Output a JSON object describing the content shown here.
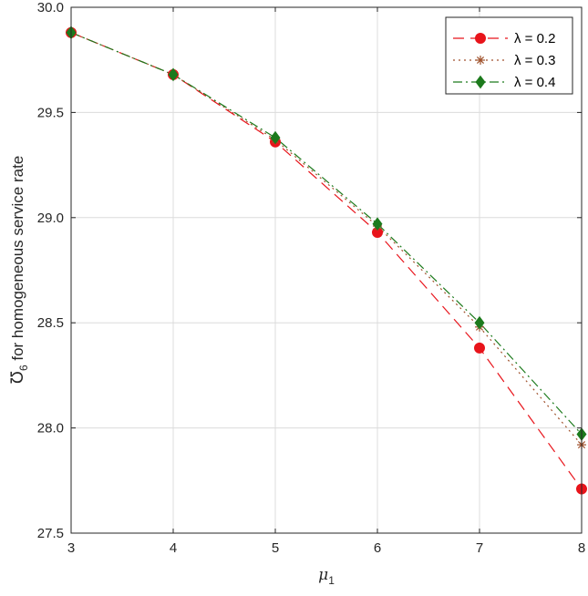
{
  "chart_data": {
    "type": "line",
    "x": [
      3,
      4,
      5,
      6,
      7,
      8
    ],
    "xlim": [
      3,
      8
    ],
    "ylim": [
      27.5,
      30.0
    ],
    "xticks": [
      "3",
      "4",
      "5",
      "6",
      "7",
      "8"
    ],
    "yticks": [
      "27.5",
      "28.0",
      "28.5",
      "29.0",
      "29.5",
      "30.0"
    ],
    "xlabel": {
      "symbol": "μ",
      "subscript": "1"
    },
    "ylabel": {
      "symbol": "Ʊ",
      "subscript": "6",
      "text": " for homogeneous service rate"
    },
    "grid": true,
    "legend_position": "top-right",
    "series": [
      {
        "name": "λ = 0.2",
        "values": [
          29.88,
          29.68,
          29.36,
          28.93,
          28.38,
          27.71
        ],
        "color": "#e8141b",
        "marker": "circle",
        "dash": "dashed"
      },
      {
        "name": "λ = 0.3",
        "values": [
          29.88,
          29.68,
          29.37,
          28.96,
          28.48,
          27.92
        ],
        "color": "#a0522d",
        "marker": "asterisk",
        "dash": "dotted"
      },
      {
        "name": "λ = 0.4",
        "values": [
          29.88,
          29.68,
          29.38,
          28.97,
          28.5,
          27.97
        ],
        "color": "#1c7a1c",
        "marker": "diamond",
        "dash": "dashdot"
      }
    ]
  }
}
